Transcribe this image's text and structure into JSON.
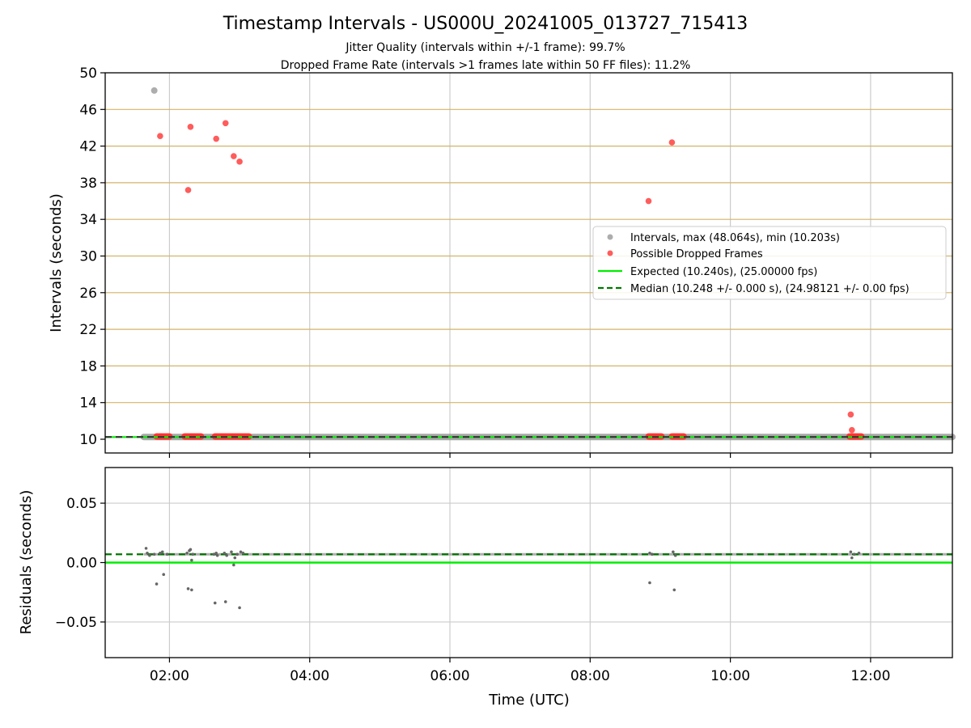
{
  "title": "Timestamp Intervals - US000U_20241005_013727_715413",
  "subtitle_1": "Jitter Quality (intervals within +/-1 frame): 99.7%",
  "subtitle_2": "Dropped Frame Rate (intervals >1 frames late within 50 FF files): 11.2%",
  "colors": {
    "intervals": "#999999",
    "dropped": "#ff3333",
    "expected": "#00ee00",
    "median": "#007700",
    "hgrid_top": "#d4b46a",
    "grid": "#cccccc",
    "residual_points": "#666666"
  },
  "chart_data": [
    {
      "type": "scatter",
      "ylabel": "Intervals (seconds)",
      "xlim": [
        "01:05",
        "13:10"
      ],
      "ylim": [
        8.5,
        50
      ],
      "xticks": [
        "02:00",
        "04:00",
        "06:00",
        "08:00",
        "10:00",
        "12:00"
      ],
      "xtick_labels_shown": false,
      "yticks": [
        "10",
        "14",
        "18",
        "22",
        "26",
        "30",
        "34",
        "38",
        "42",
        "46",
        "50"
      ],
      "grid": "on",
      "legend_position": "right",
      "legend": [
        "Intervals, max (48.064s), min (10.203s)",
        "Possible Dropped Frames",
        "Expected (10.240s), (25.00000 fps)",
        "Median (10.248 +/- 0.000 s), (24.98121 +/- 0.00 fps)"
      ],
      "expected_value": 10.24,
      "median_value": 10.248,
      "series": [
        {
          "name": "Intervals, max (48.064s), min (10.203s)",
          "points": [
            [
              "01:47",
              48.064
            ]
          ],
          "band": {
            "y": 10.248,
            "x_from": "01:38",
            "x_to": "13:10"
          }
        },
        {
          "name": "Possible Dropped Frames",
          "points": [
            [
              "01:52",
              43.1
            ],
            [
              "02:16",
              37.2
            ],
            [
              "02:18",
              44.1
            ],
            [
              "02:40",
              42.8
            ],
            [
              "02:48",
              44.5
            ],
            [
              "02:55",
              40.9
            ],
            [
              "03:00",
              40.3
            ],
            [
              "08:50",
              36.0
            ],
            [
              "09:10",
              42.4
            ],
            [
              "11:43",
              12.7
            ],
            [
              "11:44",
              11.0
            ]
          ],
          "clusters": [
            {
              "x_from": "01:49",
              "x_to": "02:00",
              "y": 10.3
            },
            {
              "x_from": "02:13",
              "x_to": "02:27",
              "y": 10.3
            },
            {
              "x_from": "02:39",
              "x_to": "03:08",
              "y": 10.3
            },
            {
              "x_from": "08:50",
              "x_to": "09:01",
              "y": 10.3
            },
            {
              "x_from": "09:10",
              "x_to": "09:20",
              "y": 10.3
            },
            {
              "x_from": "11:42",
              "x_to": "11:52",
              "y": 10.3
            }
          ]
        }
      ]
    },
    {
      "type": "scatter",
      "xlabel": "Time (UTC)",
      "ylabel": "Residuals (seconds)",
      "xlim": [
        "01:05",
        "13:10"
      ],
      "ylim": [
        -0.08,
        0.08
      ],
      "xticks": [
        "02:00",
        "04:00",
        "06:00",
        "08:00",
        "10:00",
        "12:00"
      ],
      "yticks": [
        "−0.05",
        "0.00",
        "0.05"
      ],
      "grid": "on",
      "expected_value": 0.0,
      "median_value": 0.007,
      "series": [
        {
          "name": "Residuals",
          "points": [
            [
              "01:40",
              0.012
            ],
            [
              "01:41",
              0.008
            ],
            [
              "01:43",
              0.006
            ],
            [
              "01:47",
              0.007
            ],
            [
              "01:49",
              -0.018
            ],
            [
              "01:52",
              0.008
            ],
            [
              "01:54",
              0.009
            ],
            [
              "01:55",
              -0.01
            ],
            [
              "01:58",
              0.007
            ],
            [
              "02:15",
              0.008
            ],
            [
              "02:16",
              -0.022
            ],
            [
              "02:17",
              0.01
            ],
            [
              "02:18",
              0.011
            ],
            [
              "02:19",
              -0.023
            ],
            [
              "02:19",
              0.002
            ],
            [
              "02:20",
              0.007
            ],
            [
              "02:38",
              0.007
            ],
            [
              "02:39",
              -0.034
            ],
            [
              "02:40",
              0.008
            ],
            [
              "02:41",
              0.006
            ],
            [
              "02:47",
              0.008
            ],
            [
              "02:48",
              -0.033
            ],
            [
              "02:49",
              0.006
            ],
            [
              "02:53",
              0.009
            ],
            [
              "02:55",
              -0.002
            ],
            [
              "02:56",
              0.004
            ],
            [
              "02:58",
              0.007
            ],
            [
              "03:00",
              -0.038
            ],
            [
              "03:01",
              0.009
            ],
            [
              "03:03",
              0.008
            ],
            [
              "08:51",
              0.008
            ],
            [
              "08:51",
              -0.017
            ],
            [
              "08:53",
              0.007
            ],
            [
              "09:11",
              0.009
            ],
            [
              "09:12",
              -0.023
            ],
            [
              "09:13",
              0.006
            ],
            [
              "11:43",
              0.009
            ],
            [
              "11:44",
              0.004
            ],
            [
              "11:46",
              0.007
            ],
            [
              "11:50",
              0.008
            ]
          ]
        }
      ]
    }
  ]
}
